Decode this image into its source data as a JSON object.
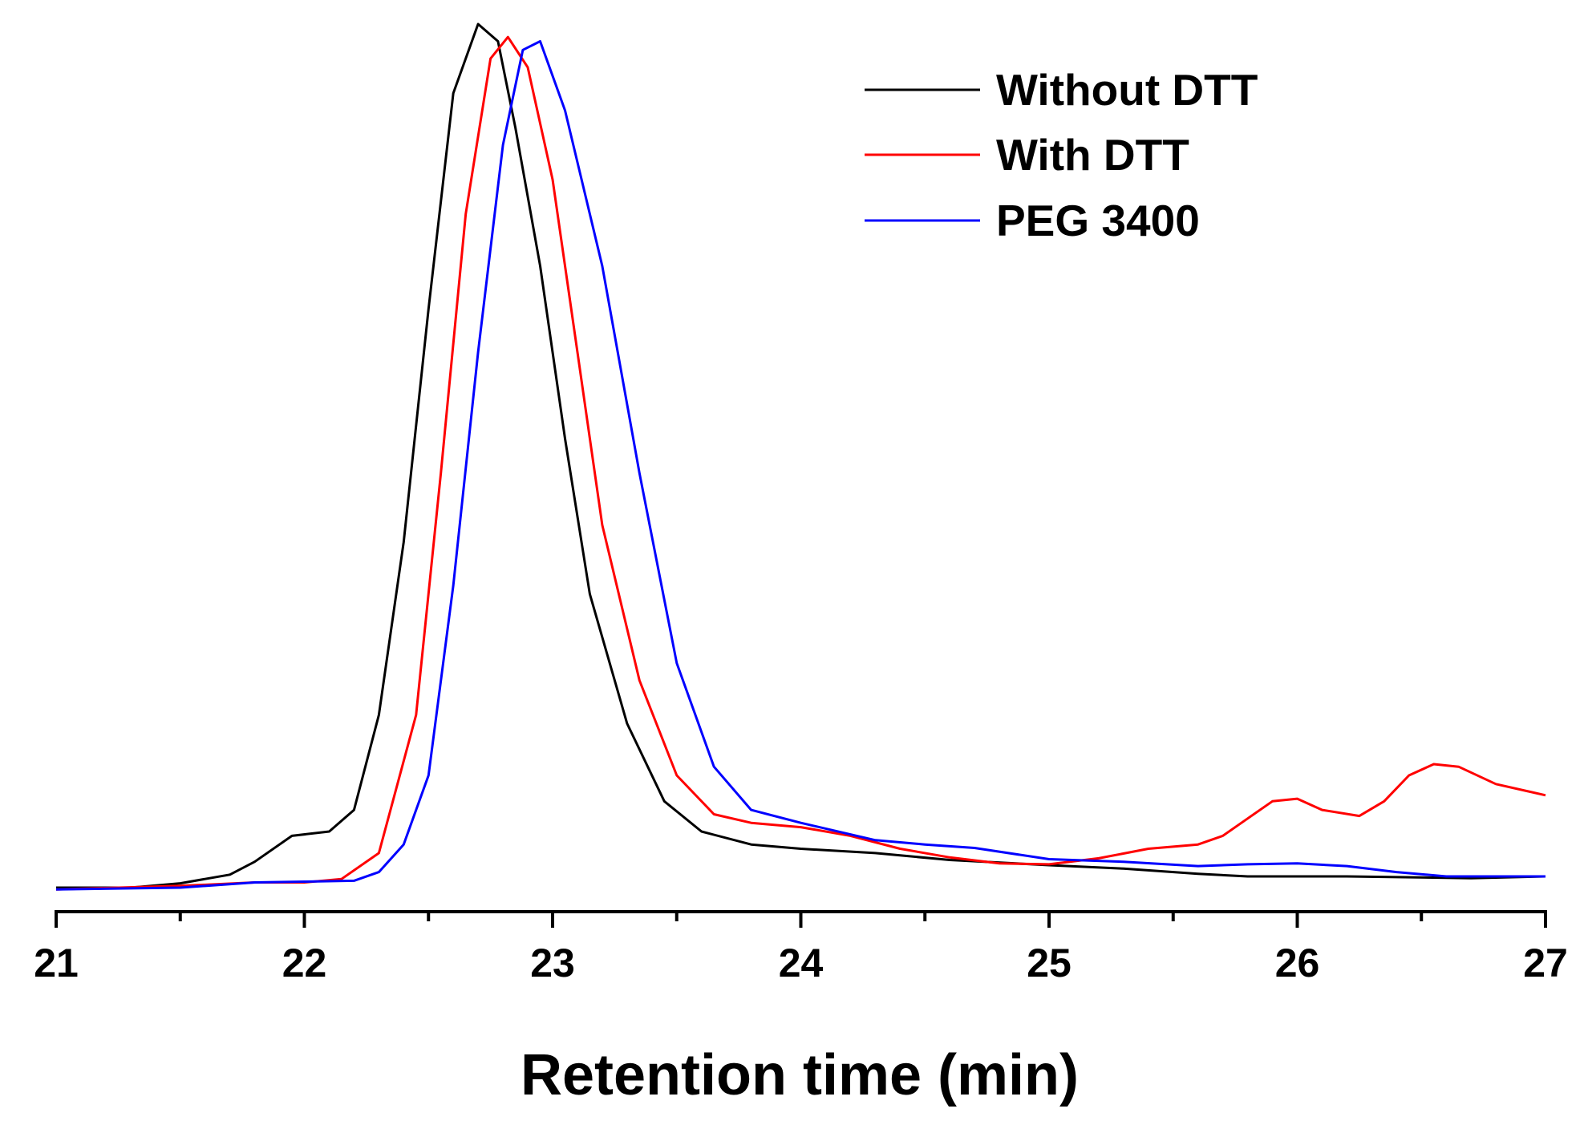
{
  "chart_data": {
    "type": "line",
    "title": "",
    "xlabel": "Retention time (min)",
    "ylabel": "",
    "xlim": [
      21,
      27
    ],
    "ylim": [
      0,
      1.0
    ],
    "x_ticks": [
      "21",
      "22",
      "23",
      "24",
      "25",
      "26",
      "27"
    ],
    "grid": false,
    "legend_position": "top-right",
    "series": [
      {
        "name": "Without DTT",
        "color": "#000000",
        "points": [
          [
            21.0,
            0.0
          ],
          [
            21.3,
            0.0
          ],
          [
            21.5,
            0.005
          ],
          [
            21.7,
            0.015
          ],
          [
            21.8,
            0.03
          ],
          [
            21.95,
            0.06
          ],
          [
            22.1,
            0.065
          ],
          [
            22.2,
            0.09
          ],
          [
            22.3,
            0.2
          ],
          [
            22.4,
            0.4
          ],
          [
            22.5,
            0.67
          ],
          [
            22.6,
            0.92
          ],
          [
            22.7,
            1.0
          ],
          [
            22.78,
            0.98
          ],
          [
            22.85,
            0.88
          ],
          [
            22.95,
            0.72
          ],
          [
            23.05,
            0.52
          ],
          [
            23.15,
            0.34
          ],
          [
            23.3,
            0.19
          ],
          [
            23.45,
            0.1
          ],
          [
            23.6,
            0.065
          ],
          [
            23.8,
            0.05
          ],
          [
            24.0,
            0.045
          ],
          [
            24.3,
            0.04
          ],
          [
            24.6,
            0.032
          ],
          [
            25.0,
            0.026
          ],
          [
            25.3,
            0.022
          ],
          [
            25.6,
            0.016
          ],
          [
            25.8,
            0.013
          ],
          [
            26.2,
            0.013
          ],
          [
            26.7,
            0.011
          ],
          [
            27.0,
            0.013
          ]
        ]
      },
      {
        "name": "With DTT",
        "color": "#ff0000",
        "points": [
          [
            21.0,
            -0.002
          ],
          [
            21.5,
            0.002
          ],
          [
            21.8,
            0.006
          ],
          [
            22.0,
            0.006
          ],
          [
            22.15,
            0.01
          ],
          [
            22.3,
            0.04
          ],
          [
            22.45,
            0.2
          ],
          [
            22.55,
            0.48
          ],
          [
            22.65,
            0.78
          ],
          [
            22.75,
            0.96
          ],
          [
            22.82,
            0.985
          ],
          [
            22.9,
            0.95
          ],
          [
            23.0,
            0.82
          ],
          [
            23.1,
            0.62
          ],
          [
            23.2,
            0.42
          ],
          [
            23.35,
            0.24
          ],
          [
            23.5,
            0.13
          ],
          [
            23.65,
            0.085
          ],
          [
            23.8,
            0.075
          ],
          [
            24.0,
            0.07
          ],
          [
            24.2,
            0.06
          ],
          [
            24.4,
            0.045
          ],
          [
            24.6,
            0.035
          ],
          [
            24.8,
            0.028
          ],
          [
            25.0,
            0.027
          ],
          [
            25.2,
            0.034
          ],
          [
            25.4,
            0.045
          ],
          [
            25.6,
            0.05
          ],
          [
            25.7,
            0.06
          ],
          [
            25.8,
            0.08
          ],
          [
            25.9,
            0.1
          ],
          [
            26.0,
            0.103
          ],
          [
            26.1,
            0.09
          ],
          [
            26.25,
            0.083
          ],
          [
            26.35,
            0.1
          ],
          [
            26.45,
            0.13
          ],
          [
            26.55,
            0.143
          ],
          [
            26.65,
            0.14
          ],
          [
            26.8,
            0.12
          ],
          [
            27.0,
            0.107
          ]
        ]
      },
      {
        "name": "PEG 3400",
        "color": "#0000ff",
        "points": [
          [
            21.0,
            -0.002
          ],
          [
            21.5,
            0.0
          ],
          [
            21.8,
            0.006
          ],
          [
            22.0,
            0.007
          ],
          [
            22.2,
            0.008
          ],
          [
            22.3,
            0.018
          ],
          [
            22.4,
            0.05
          ],
          [
            22.5,
            0.13
          ],
          [
            22.6,
            0.35
          ],
          [
            22.7,
            0.62
          ],
          [
            22.8,
            0.86
          ],
          [
            22.88,
            0.97
          ],
          [
            22.95,
            0.98
          ],
          [
            23.05,
            0.9
          ],
          [
            23.2,
            0.72
          ],
          [
            23.35,
            0.48
          ],
          [
            23.5,
            0.26
          ],
          [
            23.65,
            0.14
          ],
          [
            23.8,
            0.09
          ],
          [
            24.0,
            0.075
          ],
          [
            24.3,
            0.055
          ],
          [
            24.5,
            0.05
          ],
          [
            24.7,
            0.046
          ],
          [
            25.0,
            0.033
          ],
          [
            25.3,
            0.03
          ],
          [
            25.6,
            0.025
          ],
          [
            25.8,
            0.027
          ],
          [
            26.0,
            0.028
          ],
          [
            26.2,
            0.025
          ],
          [
            26.4,
            0.018
          ],
          [
            26.6,
            0.013
          ],
          [
            27.0,
            0.013
          ]
        ]
      }
    ]
  }
}
